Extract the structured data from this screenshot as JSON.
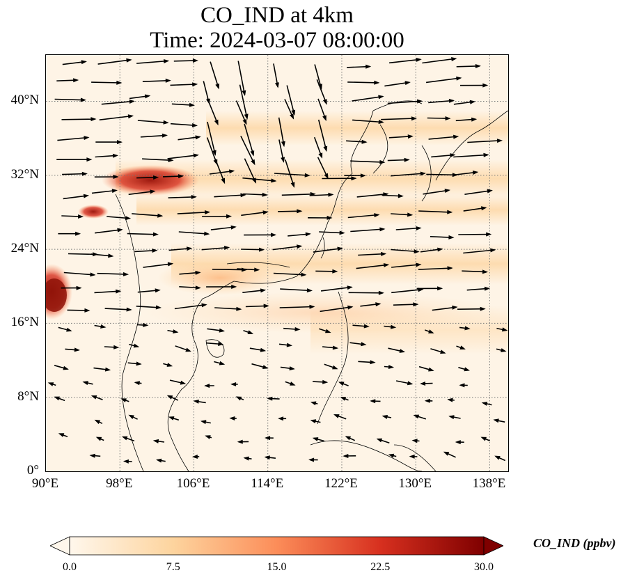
{
  "title": {
    "line1": "CO_IND at 4km",
    "line2": "Time: 2024-03-07 08:00:00"
  },
  "map": {
    "projection": "PlateCarree",
    "lon_range": [
      90,
      140
    ],
    "lat_range": [
      0,
      45
    ],
    "xticks": [
      {
        "lon": 90,
        "label": "90°E"
      },
      {
        "lon": 98,
        "label": "98°E"
      },
      {
        "lon": 106,
        "label": "106°E"
      },
      {
        "lon": 114,
        "label": "114°E"
      },
      {
        "lon": 122,
        "label": "122°E"
      },
      {
        "lon": 130,
        "label": "130°E"
      },
      {
        "lon": 138,
        "label": "138°E"
      }
    ],
    "yticks": [
      {
        "lat": 0,
        "label": "0°"
      },
      {
        "lat": 8,
        "label": "8°N"
      },
      {
        "lat": 16,
        "label": "16°N"
      },
      {
        "lat": 24,
        "label": "24°N"
      },
      {
        "lat": 32,
        "label": "32°N"
      },
      {
        "lat": 40,
        "label": "40°N"
      }
    ],
    "gridlines": "dotted",
    "coastlines": true,
    "wind_vectors": true
  },
  "colorbar": {
    "label": "CO_IND (ppbv)",
    "colormap": "OrRd",
    "range": [
      0,
      30
    ],
    "extend": "both",
    "ticks": [
      "0.0",
      "7.5",
      "15.0",
      "22.5",
      "30.0"
    ],
    "colors": [
      "#fff7ec",
      "#fdd49e",
      "#fc8d59",
      "#d7301f",
      "#7f0000"
    ]
  }
}
